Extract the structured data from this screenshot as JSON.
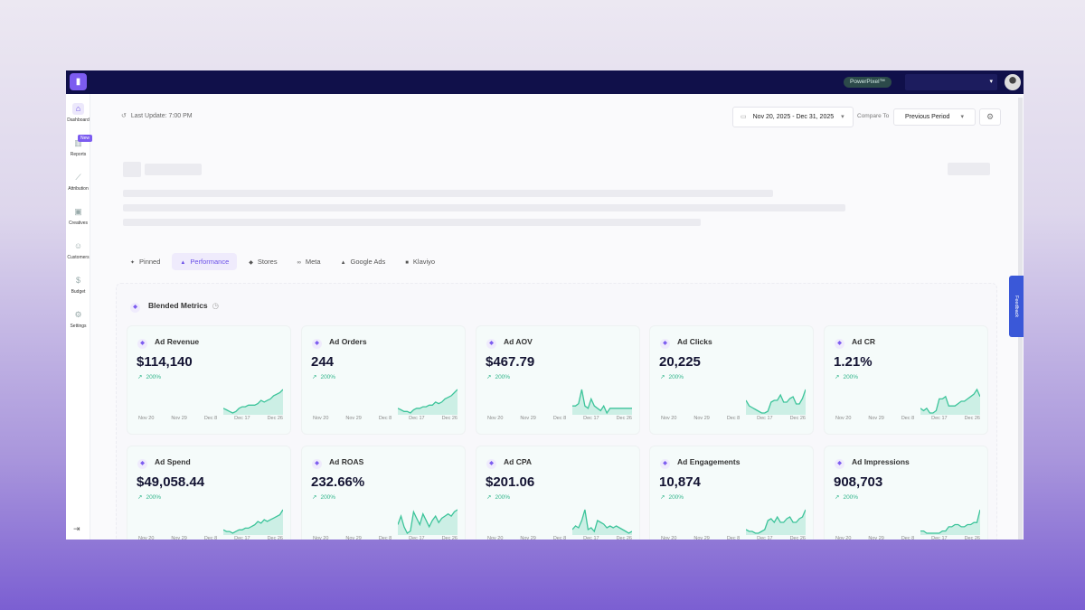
{
  "topbar": {
    "badge": "PowerPixel™",
    "account_caret": "▾"
  },
  "sidebar": {
    "items": [
      {
        "label": "Dashboard",
        "icon": "home-icon",
        "glyph": "⌂"
      },
      {
        "label": "Reports",
        "icon": "reports-icon",
        "glyph": "▥",
        "badge": "New"
      },
      {
        "label": "Attribution",
        "icon": "attribution-icon",
        "glyph": "⟋"
      },
      {
        "label": "Creatives",
        "icon": "creatives-icon",
        "glyph": "▣"
      },
      {
        "label": "Customers",
        "icon": "customers-icon",
        "glyph": "☺"
      },
      {
        "label": "Budget",
        "icon": "budget-icon",
        "glyph": "$"
      },
      {
        "label": "Settings",
        "icon": "settings-icon",
        "glyph": "⚙"
      }
    ],
    "logout": "⇥"
  },
  "header": {
    "last_update": "Last Update: 7:00 PM",
    "date_range": "Nov 20, 2025 - Dec 31, 2025",
    "compare_label": "Compare To",
    "compare_value": "Previous Period"
  },
  "tabs": [
    {
      "label": "Pinned",
      "glyph": "✦"
    },
    {
      "label": "Performance",
      "glyph": "▲"
    },
    {
      "label": "Stores",
      "glyph": "◆"
    },
    {
      "label": "Meta",
      "glyph": "∞"
    },
    {
      "label": "Google Ads",
      "glyph": "▲"
    },
    {
      "label": "Klaviyo",
      "glyph": "■"
    }
  ],
  "section": {
    "title": "Blended Metrics"
  },
  "axis_ticks": [
    "Nov 20",
    "Nov 29",
    "Dec 8",
    "Dec 17",
    "Dec 26"
  ],
  "colors": {
    "accent": "#7c5cf0",
    "positive": "#2fb58a",
    "line": "#3cc49a"
  },
  "metrics": [
    {
      "title": "Ad Revenue",
      "value": "$114,140",
      "change": "200%",
      "trend": [
        3,
        2,
        1,
        0,
        1,
        3,
        4,
        4,
        5,
        5,
        5,
        6,
        8,
        7,
        8,
        9,
        11,
        12,
        13,
        15
      ]
    },
    {
      "title": "Ad Orders",
      "value": "244",
      "change": "200%",
      "trend": [
        4,
        3,
        2,
        2,
        1,
        3,
        4,
        4,
        5,
        5,
        6,
        6,
        8,
        7,
        8,
        10,
        11,
        12,
        14,
        16
      ]
    },
    {
      "title": "Ad AOV",
      "value": "$467.79",
      "change": "200%",
      "trend": [
        3,
        3,
        4,
        10,
        3,
        2,
        6,
        3,
        2,
        1,
        3,
        0,
        2,
        2,
        2,
        2,
        2,
        2,
        2,
        2
      ]
    },
    {
      "title": "Ad Clicks",
      "value": "20,225",
      "change": "200%",
      "trend": [
        8,
        5,
        4,
        3,
        2,
        1,
        1,
        2,
        7,
        8,
        8,
        11,
        7,
        7,
        9,
        10,
        6,
        6,
        9,
        14
      ]
    },
    {
      "title": "Ad CR",
      "value": "1.21%",
      "change": "200%",
      "trend": [
        3,
        2,
        3,
        1,
        1,
        2,
        7,
        7,
        8,
        4,
        4,
        4,
        5,
        6,
        6,
        7,
        8,
        9,
        11,
        8
      ]
    },
    {
      "title": "Ad Spend",
      "value": "$49,058.44",
      "change": "200%",
      "trend": [
        2,
        1,
        1,
        0,
        1,
        2,
        2,
        3,
        3,
        4,
        5,
        7,
        6,
        8,
        7,
        8,
        9,
        10,
        11,
        14
      ]
    },
    {
      "title": "Ad ROAS",
      "value": "232.66%",
      "change": "200%",
      "trend": [
        5,
        9,
        4,
        1,
        2,
        11,
        8,
        5,
        10,
        7,
        4,
        7,
        9,
        6,
        8,
        9,
        10,
        9,
        11,
        12
      ]
    },
    {
      "title": "Ad CPA",
      "value": "$201.06",
      "change": "200%",
      "trend": [
        2,
        4,
        3,
        7,
        13,
        2,
        3,
        1,
        7,
        6,
        5,
        3,
        4,
        3,
        4,
        3,
        2,
        1,
        0,
        1
      ]
    },
    {
      "title": "Ad Engagements",
      "value": "10,874",
      "change": "200%",
      "trend": [
        3,
        2,
        2,
        1,
        1,
        2,
        3,
        8,
        9,
        7,
        10,
        7,
        7,
        9,
        10,
        7,
        7,
        9,
        10,
        14
      ]
    },
    {
      "title": "Ad Impressions",
      "value": "908,703",
      "change": "200%",
      "trend": [
        1,
        1,
        0,
        0,
        0,
        0,
        0,
        1,
        1,
        3,
        3,
        4,
        4,
        3,
        3,
        4,
        4,
        5,
        5,
        11
      ]
    }
  ],
  "feedback": {
    "label": "Feedback"
  }
}
